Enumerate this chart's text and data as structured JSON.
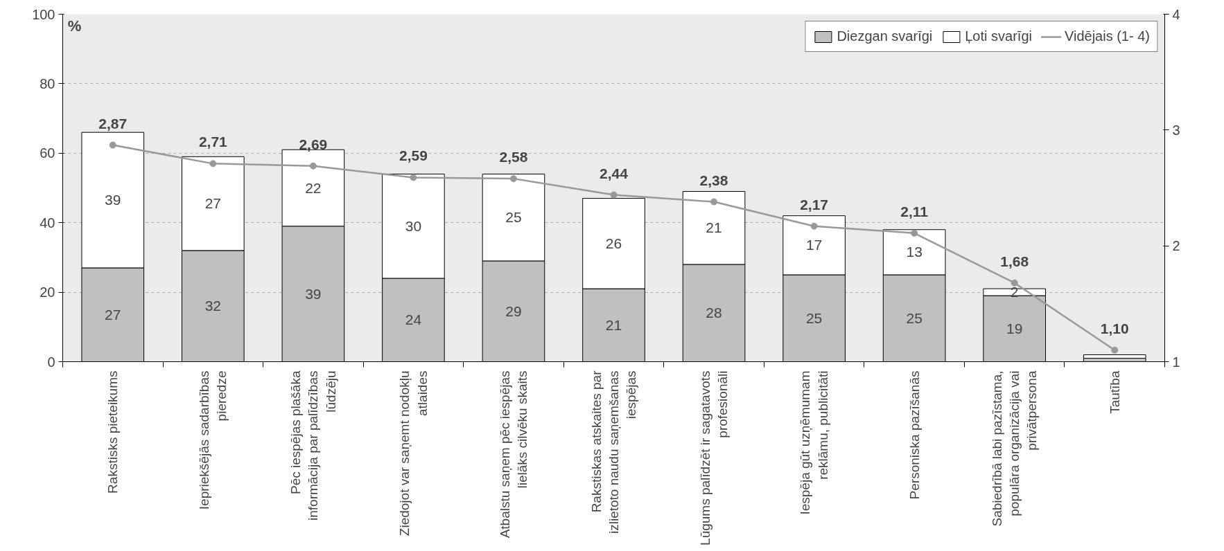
{
  "chart_data": {
    "type": "bar",
    "stacked": true,
    "ylabel": "%",
    "categories": [
      "Rakstisks pieteikums",
      "Iepriekšējās sadarbības pieredze",
      "Pēc iespējas plašāka informācija par palīdzības lūdzēju",
      "Ziedojot var saņemt nodokļu atlaides",
      "Atbalstu saņem pēc iespējas lielāks cilvēku skaits",
      "Rakstiskas atskaites par izlietoto naudu saņemšanas iespējas",
      "Lūgums palīdzēt ir sagatavots profesionāli",
      "Iespēja gūt uzņēmumam reklāmu, publicitāti",
      "Personiska pazīšanās",
      "Sabiedrībā labi pazīstama, populāra organizācija vai privātpersona",
      "Tautība"
    ],
    "series": [
      {
        "name": "Diezgan svarīgi",
        "color": "#c0c0c0",
        "values": [
          27,
          32,
          39,
          24,
          29,
          21,
          28,
          25,
          25,
          19,
          1
        ],
        "value_labels": [
          "27",
          "32",
          "39",
          "24",
          "29",
          "21",
          "28",
          "25",
          "25",
          "19",
          null
        ]
      },
      {
        "name": "Ļoti svarīgi",
        "color": "#ffffff",
        "values": [
          39,
          27,
          22,
          30,
          25,
          26,
          21,
          17,
          13,
          2,
          1
        ],
        "value_labels": [
          "39",
          "27",
          "22",
          "30",
          "25",
          "26",
          "21",
          "17",
          "13",
          "2",
          null
        ]
      },
      {
        "name": "Vidējais (1- 4)",
        "type": "line",
        "axis": "y2",
        "color": "#999999",
        "marker": "circle",
        "values": [
          2.87,
          2.71,
          2.69,
          2.59,
          2.58,
          2.44,
          2.38,
          2.17,
          2.11,
          1.68,
          1.1
        ],
        "value_labels": [
          "2,87",
          "2,71",
          "2,69",
          "2,59",
          "2,58",
          "2,44",
          "2,38",
          "2,17",
          "2,11",
          "1,68",
          "1,10"
        ]
      }
    ],
    "ylim": [
      0,
      100
    ],
    "yticks": [
      0,
      20,
      40,
      60,
      80,
      100
    ],
    "y2lim": [
      1,
      4
    ],
    "y2ticks": [
      1,
      2,
      3,
      4
    ],
    "grid": "y",
    "legend": "top right"
  }
}
